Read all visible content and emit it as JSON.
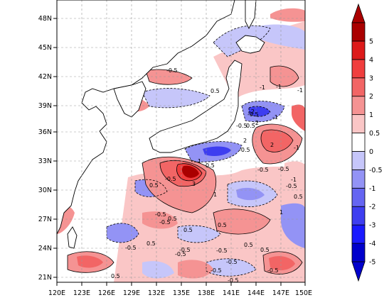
{
  "map": {
    "type": "filled-contour",
    "lon_labels": [
      "120E",
      "123E",
      "126E",
      "129E",
      "132E",
      "135E",
      "138E",
      "141E",
      "144E",
      "147E",
      "150E"
    ],
    "lat_labels": [
      "21N",
      "24N",
      "27N",
      "30N",
      "33N",
      "36N",
      "39N",
      "42N",
      "45N",
      "48N"
    ],
    "lon_range": [
      120,
      150
    ],
    "lat_range": [
      19.5,
      50
    ],
    "grid": "dashed",
    "land_color": "#ffffff",
    "colorbar": {
      "placement": "right",
      "levels": [
        "-5",
        "-4",
        "-3",
        "-2",
        "-1",
        "-0.5",
        "0",
        "0.5",
        "1",
        "2",
        "3",
        "4",
        "5"
      ],
      "colors": [
        "#0000cc",
        "#1a1aff",
        "#3e3ef0",
        "#6565f2",
        "#9393f5",
        "#c6c6fa",
        "#ffffff",
        "#fac6c6",
        "#f59393",
        "#f26565",
        "#f03e3e",
        "#dd1a1a",
        "#aa0000"
      ]
    },
    "contour_labels": [
      "0.5",
      "1",
      "-0.5",
      "2",
      "-1",
      "-2",
      "3",
      "-0.5",
      "0.5",
      "-0.5",
      "0.5",
      "-0.5",
      "1",
      "-0.5",
      "0.5",
      "0.5",
      "-0.5",
      "-1",
      "-1",
      "-0.5",
      "-2",
      "-0.5",
      "2",
      "-0.5",
      "0.5",
      "-1",
      "-0.5",
      "0.5",
      "-0.5",
      "0.5",
      "-0.5",
      "0.5",
      "-0.5",
      "-1",
      "-0.5",
      "1",
      "-0.5",
      "0.5",
      "-0.5",
      "0.5",
      "-0.5",
      "0.5",
      "-0.5",
      "-1"
    ]
  }
}
